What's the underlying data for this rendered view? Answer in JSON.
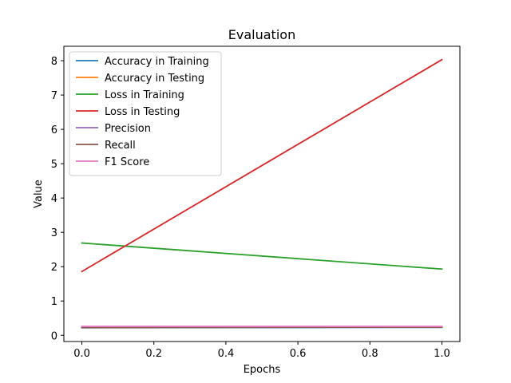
{
  "chart_data": {
    "type": "line",
    "title": "Evaluation",
    "xlabel": "Epochs",
    "ylabel": "Value",
    "xlim": [
      -0.05,
      1.05
    ],
    "ylim": [
      -0.18,
      8.42
    ],
    "xticks": [
      0.0,
      0.2,
      0.4,
      0.6,
      0.8,
      1.0
    ],
    "xtick_labels": [
      "0.0",
      "0.2",
      "0.4",
      "0.6",
      "0.8",
      "1.0"
    ],
    "yticks": [
      0,
      1,
      2,
      3,
      4,
      5,
      6,
      7,
      8
    ],
    "ytick_labels": [
      "0",
      "1",
      "2",
      "3",
      "4",
      "5",
      "6",
      "7",
      "8"
    ],
    "legend_position": "top-left",
    "grid": false,
    "x": [
      0.0,
      1.0
    ],
    "series": [
      {
        "name": "Accuracy in Training",
        "color": "#1f77b4",
        "values": [
          0.22,
          0.23
        ]
      },
      {
        "name": "Accuracy in Testing",
        "color": "#ff7f0e",
        "values": [
          0.23,
          0.24
        ]
      },
      {
        "name": "Loss in Training",
        "color": "#2ca02c",
        "values": [
          2.69,
          1.93
        ]
      },
      {
        "name": "Loss in Testing",
        "color": "#d62728",
        "values": [
          1.86,
          8.03
        ]
      },
      {
        "name": "Precision",
        "color": "#9467bd",
        "values": [
          0.24,
          0.25
        ]
      },
      {
        "name": "Recall",
        "color": "#8c564b",
        "values": [
          0.23,
          0.24
        ]
      },
      {
        "name": "F1 Score",
        "color": "#e377c2",
        "values": [
          0.26,
          0.26
        ]
      }
    ]
  }
}
